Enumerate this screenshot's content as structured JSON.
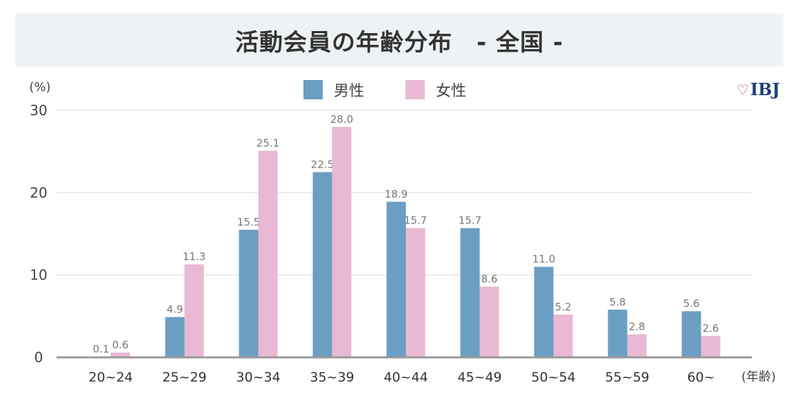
{
  "title": "活動会員の年齢分布　- 全国 -",
  "logo_text": "IBJ",
  "chart_data": {
    "type": "bar",
    "title": "活動会員の年齢分布　- 全国 -",
    "ylabel": "(%)",
    "xlabel": "(年齢)",
    "ylim": [
      0,
      30
    ],
    "yticks": [
      0,
      10,
      20,
      30
    ],
    "grid": true,
    "legend_position": "top-center",
    "categories": [
      "20~24",
      "25~29",
      "30~34",
      "35~39",
      "40~44",
      "45~49",
      "50~54",
      "55~59",
      "60~"
    ],
    "series": [
      {
        "name": "男性",
        "color": "#6b9ec3",
        "values": [
          0.1,
          4.9,
          15.5,
          22.5,
          18.9,
          15.7,
          11.0,
          5.8,
          5.6
        ],
        "labels": [
          "0.1",
          "4.9",
          "15.5",
          "22.5",
          "18.9",
          "15.7",
          "11.0",
          "5.8",
          "5.6"
        ]
      },
      {
        "name": "女性",
        "color": "#e9b9d3",
        "values": [
          0.6,
          11.3,
          25.1,
          28.0,
          15.7,
          8.6,
          5.2,
          2.8,
          2.6
        ],
        "labels": [
          "0.6",
          "11.3",
          "25.1",
          "28.0",
          "15.7",
          "8.6",
          "5.2",
          "2.8",
          "2.6"
        ]
      }
    ]
  }
}
